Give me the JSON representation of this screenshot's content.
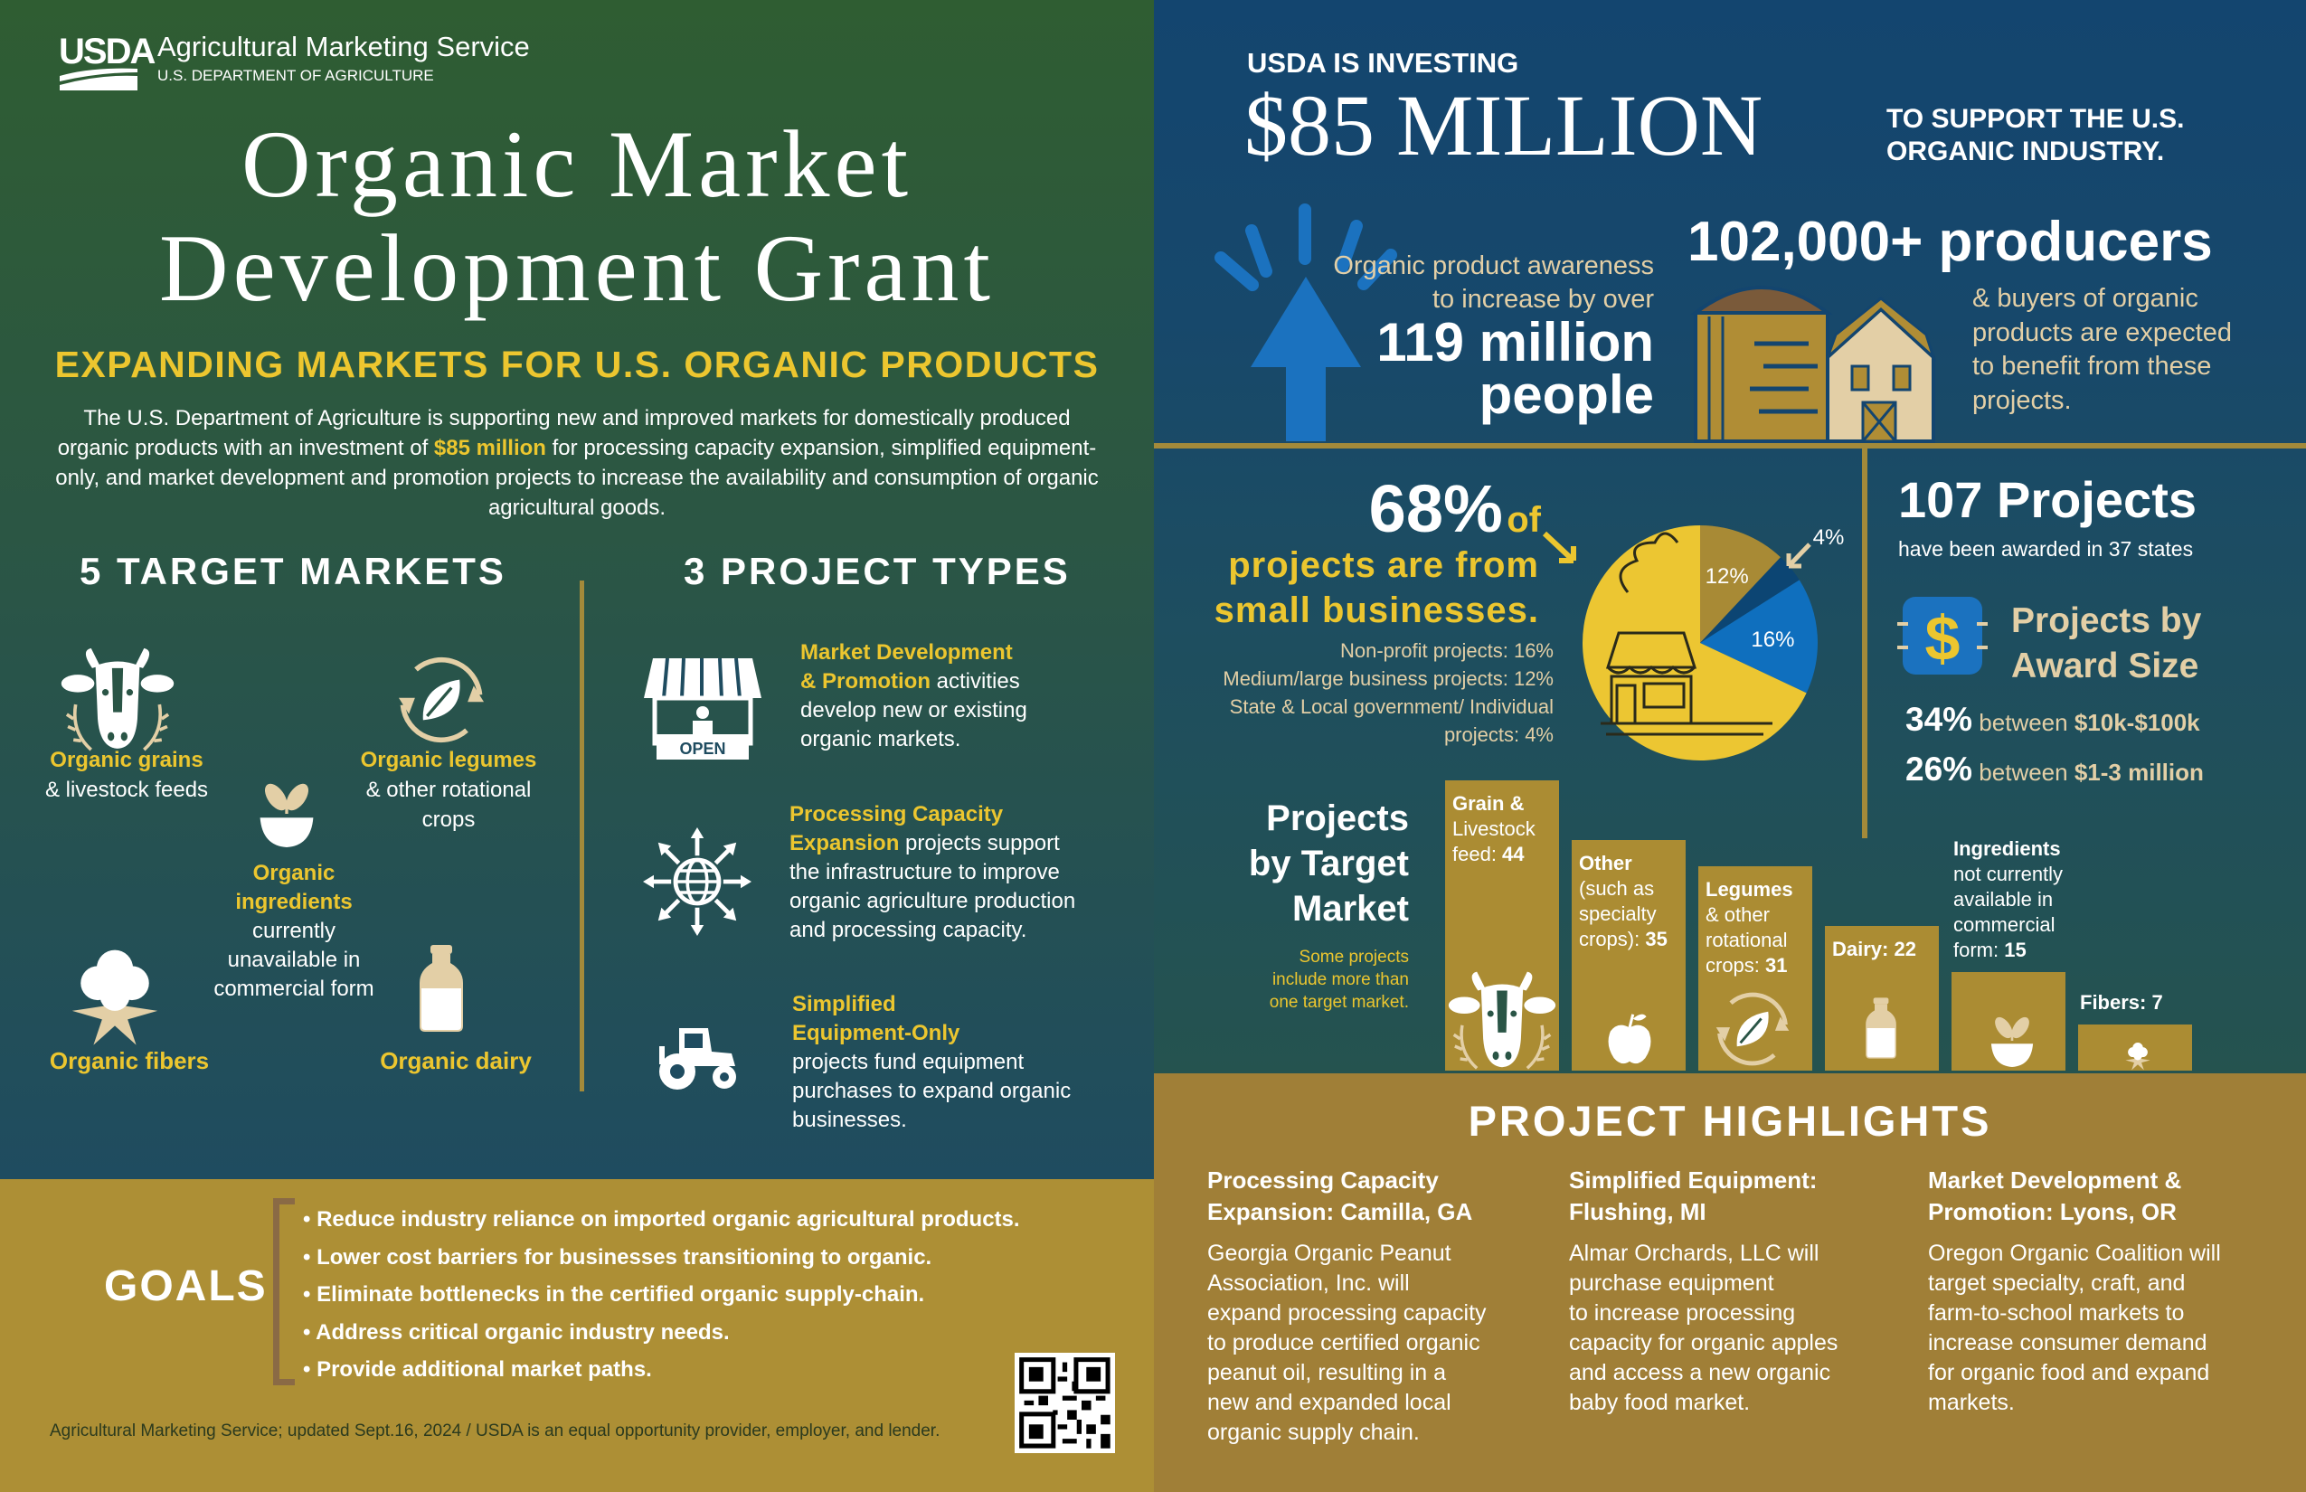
{
  "colors": {
    "green_top": "#2f5d32",
    "teal": "#1f4c60",
    "navy": "#13456f",
    "gold": "#ab8c33",
    "yellow": "#ecc62f",
    "beige": "#e3cfa6",
    "blue": "#1b72bf"
  },
  "header": {
    "logo": "USDA",
    "agency": "Agricultural Marketing Service",
    "department": "U.S. DEPARTMENT OF AGRICULTURE"
  },
  "title": {
    "line1": "Organic Market",
    "line2": "Development Grant"
  },
  "subtitle": "EXPANDING MARKETS FOR U.S. ORGANIC PRODUCTS",
  "intro": {
    "before": "The U.S. Department of Agriculture is supporting new and improved markets for domestically produced organic products with an investment of ",
    "highlight": "$85 million",
    "after": " for processing capacity expansion, simplified equipment-only, and market development and promotion projects to increase the availability and consumption of organic agricultural goods."
  },
  "target_markets": {
    "heading": "5 TARGET MARKETS",
    "grains": [
      {
        "hl": "Organic grains",
        "text": ""
      },
      {
        "hl": "",
        "text": "& livestock feeds"
      }
    ],
    "legumes": [
      {
        "hl": "Organic legumes",
        "text": ""
      },
      {
        "hl": "",
        "text": "& other rotational"
      },
      {
        "hl": "",
        "text": "crops"
      }
    ],
    "ingredients": [
      {
        "hl": "Organic",
        "text": ""
      },
      {
        "hl": "ingredients",
        "text": ""
      },
      {
        "hl": "",
        "text": "currently"
      },
      {
        "hl": "",
        "text": "unavailable in"
      },
      {
        "hl": "",
        "text": "commercial form"
      }
    ],
    "fibers": [
      {
        "hl": "Organic fibers",
        "text": ""
      }
    ],
    "dairy": [
      {
        "hl": "Organic dairy",
        "text": ""
      }
    ]
  },
  "project_types": {
    "heading": "3 PROJECT TYPES",
    "market": [
      {
        "hl": "Market Development",
        "text": ""
      },
      {
        "hl": "& Promotion",
        "text": " activities"
      },
      {
        "hl": "",
        "text": "develop new or existing"
      },
      {
        "hl": "",
        "text": "organic markets."
      }
    ],
    "processing": [
      {
        "hl": "Processing Capacity",
        "text": ""
      },
      {
        "hl": "Expansion",
        "text": " projects support"
      },
      {
        "hl": "",
        "text": "the infrastructure to improve"
      },
      {
        "hl": "",
        "text": "organic agriculture production"
      },
      {
        "hl": "",
        "text": "and processing capacity."
      }
    ],
    "equipment": [
      {
        "hl": "Simplified",
        "text": ""
      },
      {
        "hl": "Equipment-Only",
        "text": ""
      },
      {
        "hl": "",
        "text": "projects fund equipment"
      },
      {
        "hl": "",
        "text": "purchases to expand organic"
      },
      {
        "hl": "",
        "text": "businesses."
      }
    ],
    "stand_sign": "OPEN"
  },
  "goals": {
    "heading": "GOALS",
    "items": [
      "• Reduce industry reliance on imported organic agricultural products.",
      "• Lower cost barriers for businesses transitioning to organic.",
      "• Eliminate bottlenecks in the certified organic supply-chain.",
      "• Address critical organic industry needs.",
      "• Provide additional market paths."
    ]
  },
  "footer": "Agricultural Marketing Service; updated Sept.16, 2024 / USDA is an equal opportunity provider, employer, and lender.",
  "investing": {
    "kicker": "USDA IS INVESTING",
    "amount": "$85 MILLION",
    "support_lines": [
      "TO SUPPORT THE U.S.",
      "ORGANIC INDUSTRY."
    ]
  },
  "awareness": {
    "lines": [
      "Organic product awareness",
      "to increase by over"
    ],
    "big_lines": [
      "119 million",
      "people"
    ]
  },
  "producers": {
    "headline": "102,000+ producers",
    "lines": [
      "& buyers of organic",
      "products are expected",
      "to benefit from these",
      "projects."
    ]
  },
  "small_business": {
    "pct": "68%",
    "of": "of",
    "lines": [
      "projects are from",
      "small businesses."
    ],
    "breakdown": [
      "Non-profit projects: 16%",
      "Medium/large business projects: 12%",
      "State & Local government/ Individual",
      "projects: 4%"
    ]
  },
  "awards": {
    "headline": "107 Projects",
    "sub": "have been awarded in 37 states",
    "badge_symbol": "$",
    "title_lines": [
      "Projects by",
      "Award Size"
    ],
    "rows": [
      {
        "pct": "34%",
        "between": "between",
        "range": "$10k-$100k"
      },
      {
        "pct": "26%",
        "between": "between",
        "range": "$1-3 million"
      }
    ]
  },
  "target_chart": {
    "title_lines": [
      "Projects",
      "by Target",
      "Market"
    ],
    "note_lines": [
      "Some projects",
      "include more than",
      "one target market."
    ]
  },
  "chart_data": [
    {
      "type": "pie",
      "slices": [
        {
          "label": "12%",
          "value": 12,
          "category": "Medium/large business",
          "color": "#a88a35"
        },
        {
          "label": "4%",
          "value": 4,
          "category": "State & Local government/ Individual",
          "color": "#0c4573"
        },
        {
          "label": "16%",
          "value": 16,
          "category": "Non-profit",
          "color": "#0f6fbe"
        },
        {
          "label": "68%",
          "value": 68,
          "category": "Small businesses",
          "color": "#ecc632"
        }
      ]
    },
    {
      "type": "bar",
      "title": "Projects by Target Market",
      "bars": [
        {
          "bold": "Grain &",
          "text": " Livestock feed: ",
          "value": 44,
          "icon": "cow-icon"
        },
        {
          "bold": "Other",
          "text": " (such as specialty crops): ",
          "value": 35,
          "icon": "apple-icon"
        },
        {
          "bold": "Legumes",
          "text": " & other rotational crops: ",
          "value": 31,
          "icon": "leaf-cycle-icon"
        },
        {
          "bold": "Dairy:",
          "text": " ",
          "value": 22,
          "icon": "milk-bottle-icon"
        },
        {
          "bold": "Ingredients",
          "text": " not currently available in commercial form: ",
          "value": 15,
          "icon": "bowl-sprout-icon"
        },
        {
          "bold": "Fibers:",
          "text": " ",
          "value": 7,
          "icon": "cotton-icon"
        }
      ],
      "ylim": [
        0,
        44
      ]
    }
  ],
  "highlights": {
    "heading": "PROJECT HIGHLIGHTS",
    "items": [
      {
        "title_lines": [
          "Processing Capacity",
          "Expansion: Camilla, GA"
        ],
        "body_lines": [
          "Georgia Organic Peanut",
          "Association, Inc. will",
          "expand processing capacity",
          "to produce certified organic",
          "peanut oil, resulting in a",
          "new and expanded local",
          "organic supply chain."
        ]
      },
      {
        "title_lines": [
          "Simplified Equipment:",
          "Flushing, MI"
        ],
        "body_lines": [
          "Almar Orchards, LLC will",
          "purchase equipment",
          "to increase processing",
          "capacity for organic apples",
          "and access a new organic",
          "baby food market."
        ]
      },
      {
        "title_lines": [
          "Market Development &",
          "Promotion: Lyons, OR"
        ],
        "body_lines": [
          "Oregon Organic Coalition will",
          "target specialty, craft, and",
          "farm-to-school markets to",
          "increase consumer demand",
          "for organic food and expand",
          "markets."
        ]
      }
    ]
  }
}
